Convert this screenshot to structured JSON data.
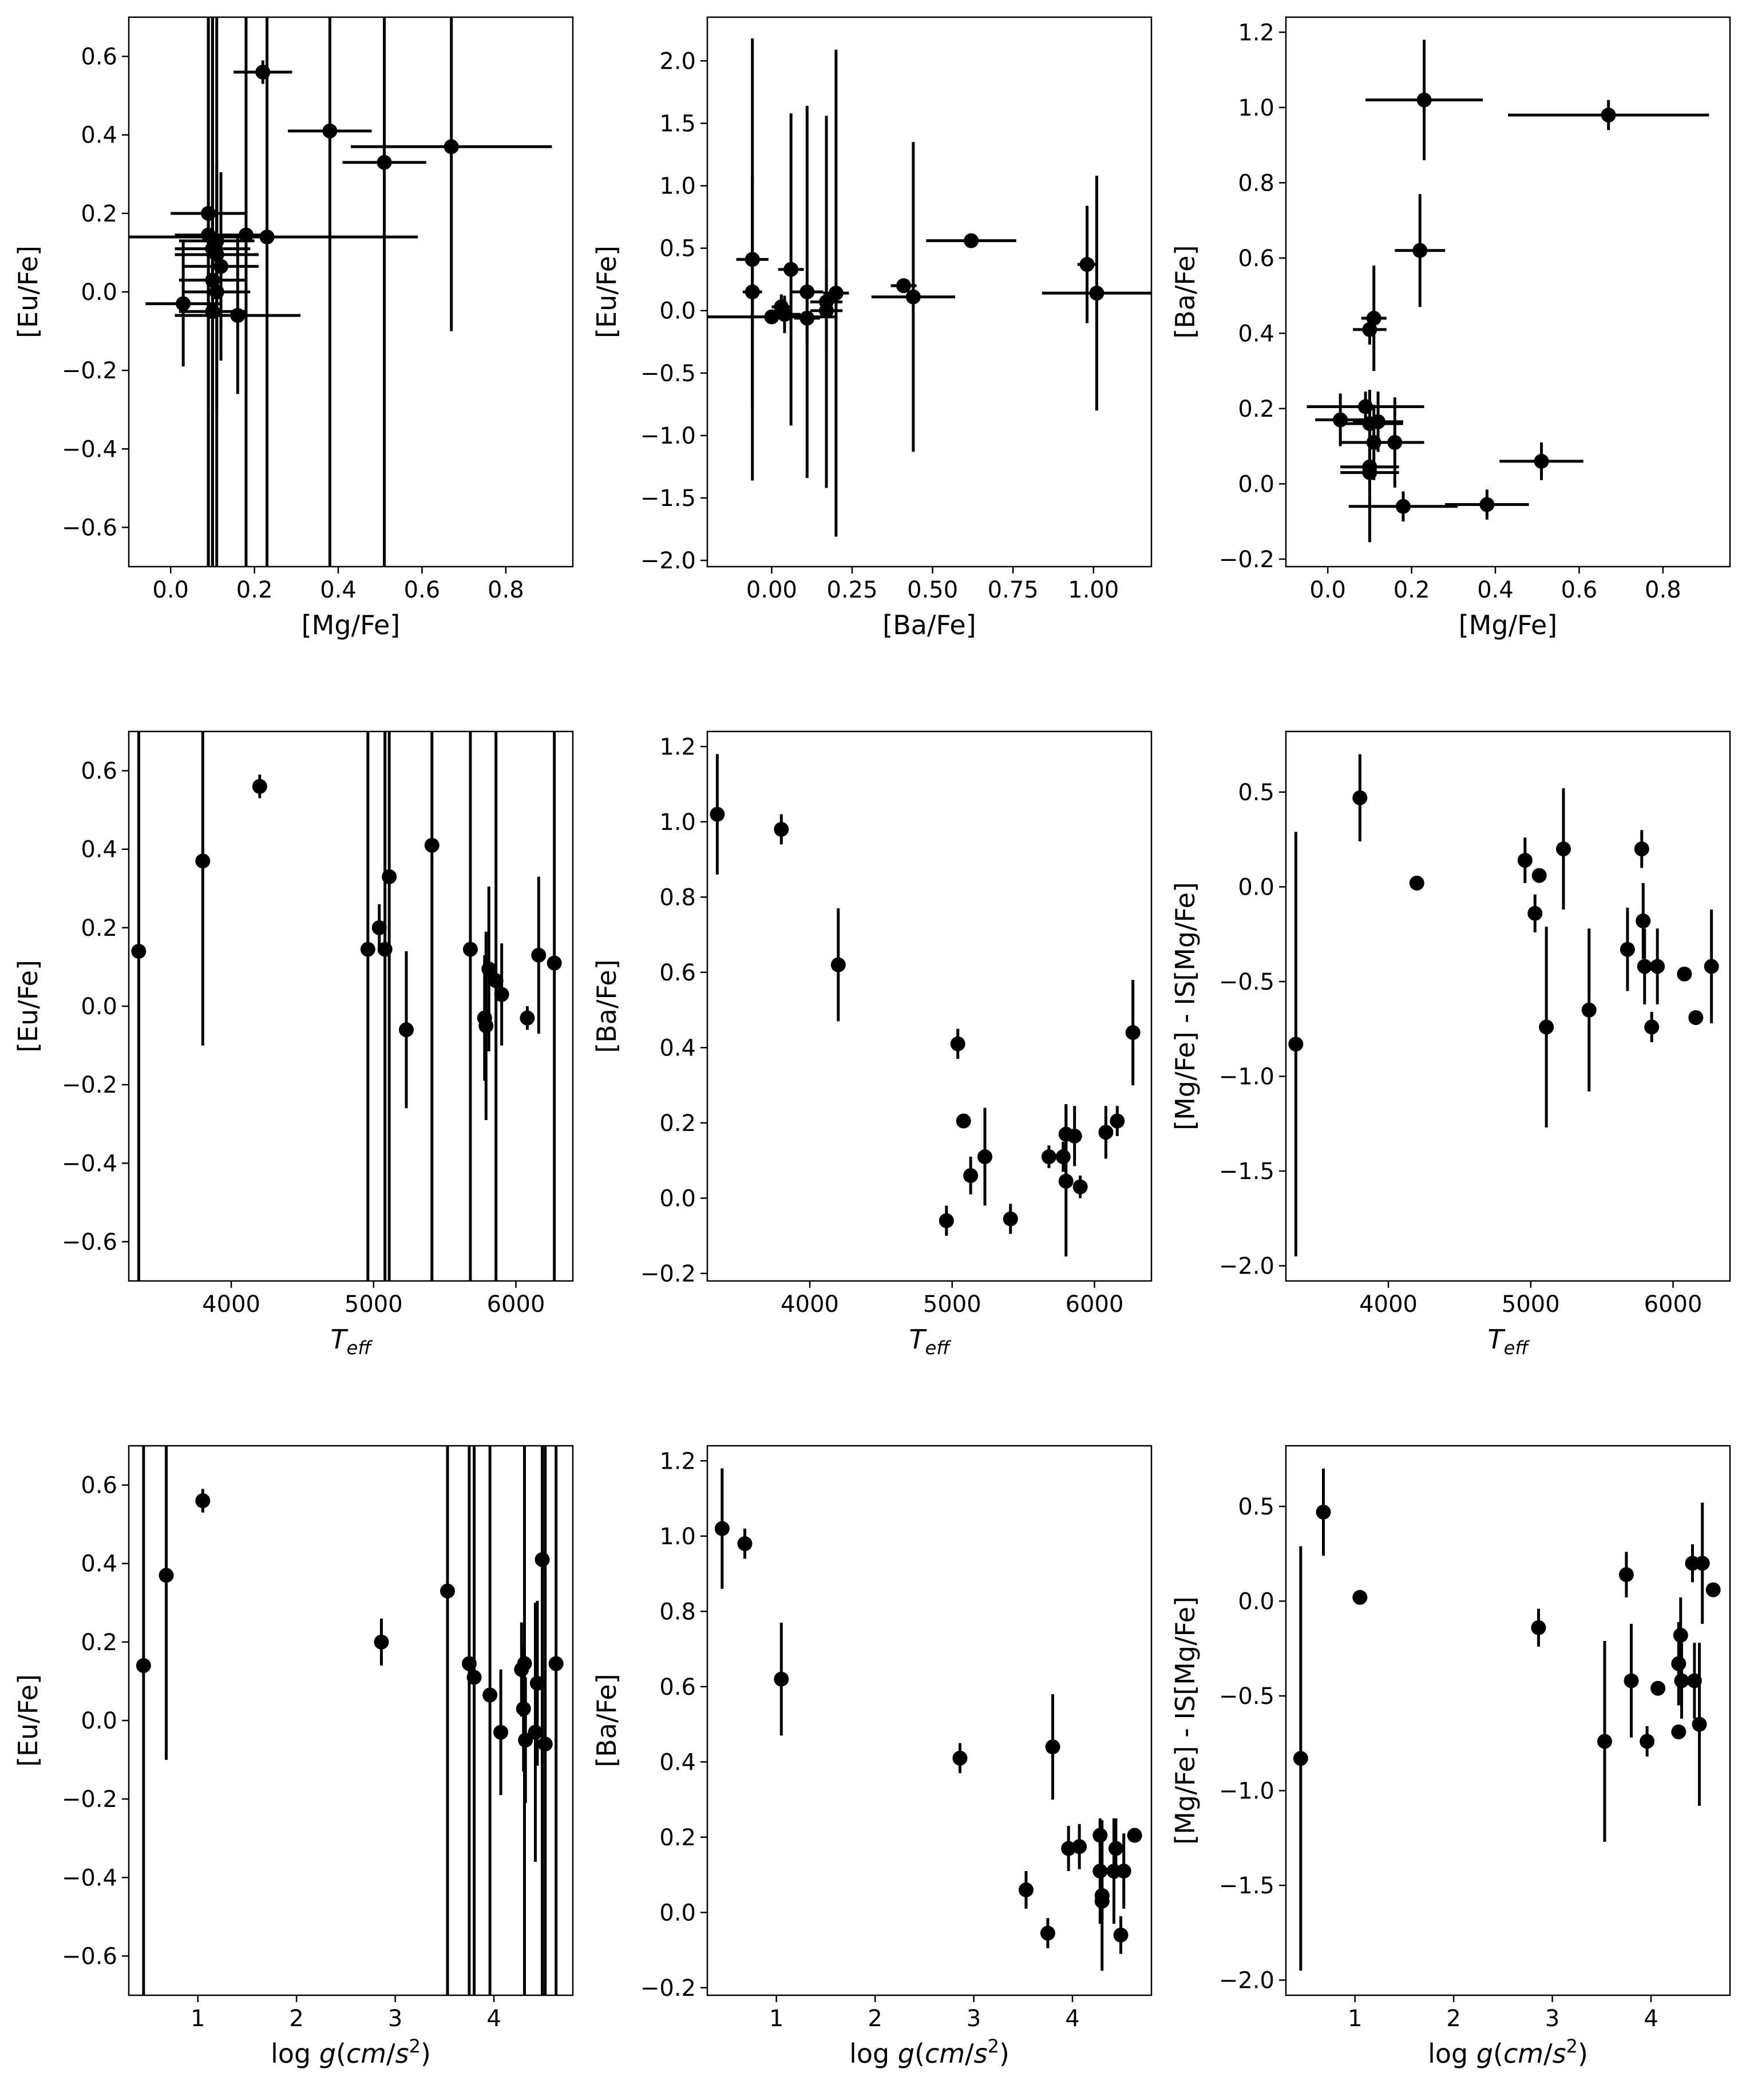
{
  "figure": {
    "background": "#ffffff",
    "marker_color": "#000000"
  },
  "chart_data": [
    {
      "type": "scatter",
      "error_bars": true,
      "xlabel": "[Mg/Fe]",
      "ylabel": "[Eu/Fe]",
      "xlim": [
        -0.1,
        0.96
      ],
      "ylim": [
        -0.7,
        0.7
      ],
      "xticks": [
        "0.0",
        "0.2",
        "0.4",
        "0.6",
        "0.8"
      ],
      "yticks": [
        "−0.6",
        "−0.4",
        "−0.2",
        "0.0",
        "0.2",
        "0.4",
        "0.6"
      ],
      "points": [
        {
          "x": 0.22,
          "y": 0.56,
          "xerr": 0.07,
          "yerr": 0.03
        },
        {
          "x": 0.38,
          "y": 0.41,
          "xerr": 0.1,
          "yerr": 1.2
        },
        {
          "x": 0.51,
          "y": 0.33,
          "xerr": 0.1,
          "yerr": 1.1
        },
        {
          "x": 0.67,
          "y": 0.37,
          "xerr": 0.24,
          "yerr": 0.47
        },
        {
          "x": 0.09,
          "y": 0.2,
          "xerr": 0.09,
          "yerr": 1.2
        },
        {
          "x": 0.09,
          "y": 0.145,
          "xerr": 0.08,
          "yerr": 1.2
        },
        {
          "x": 0.11,
          "y": 0.13,
          "xerr": 0.09,
          "yerr": 0.2
        },
        {
          "x": 0.1,
          "y": 0.11,
          "xerr": 0.09,
          "yerr": 1.2
        },
        {
          "x": 0.18,
          "y": 0.145,
          "xerr": 0.05,
          "yerr": 1.2
        },
        {
          "x": 0.23,
          "y": 0.14,
          "xerr": 0.36,
          "yerr": 1.2
        },
        {
          "x": 0.12,
          "y": 0.065,
          "xerr": 0.09,
          "yerr": 0.24
        },
        {
          "x": 0.11,
          "y": 0.095,
          "xerr": 0.1,
          "yerr": 1.2
        },
        {
          "x": 0.1,
          "y": 0.03,
          "xerr": 0.08,
          "yerr": 1.2
        },
        {
          "x": 0.03,
          "y": -0.03,
          "xerr": 0.09,
          "yerr": 0.16
        },
        {
          "x": 0.1,
          "y": -0.05,
          "xerr": 0.08,
          "yerr": 1.2
        },
        {
          "x": 0.16,
          "y": -0.06,
          "xerr": 0.15,
          "yerr": 0.2
        },
        {
          "x": 0.11,
          "y": 0.0,
          "xerr": 0.08,
          "yerr": 0.3
        }
      ]
    },
    {
      "type": "scatter",
      "error_bars": true,
      "xlabel": "[Ba/Fe]",
      "ylabel": "[Eu/Fe]",
      "xlim": [
        -0.2,
        1.18
      ],
      "ylim": [
        -2.05,
        2.35
      ],
      "xticks": [
        "0.00",
        "0.25",
        "0.50",
        "0.75",
        "1.00"
      ],
      "yticks": [
        "−2.0",
        "−1.5",
        "−1.0",
        "−0.5",
        "0.0",
        "0.5",
        "1.0",
        "1.5",
        "2.0"
      ],
      "points": [
        {
          "x": -0.06,
          "y": 0.41,
          "xerr": 0.05,
          "yerr": 1.77
        },
        {
          "x": -0.06,
          "y": 0.15,
          "xerr": 0.03,
          "yerr": 0.93
        },
        {
          "x": 0.03,
          "y": 0.03,
          "xerr": 0.03,
          "yerr": 0.1
        },
        {
          "x": 0.04,
          "y": -0.03,
          "xerr": 0.05,
          "yerr": 0.15
        },
        {
          "x": 0.06,
          "y": 0.33,
          "xerr": 0.04,
          "yerr": 1.25
        },
        {
          "x": 0.11,
          "y": 0.15,
          "xerr": 0.05,
          "yerr": 1.49
        },
        {
          "x": 0.11,
          "y": -0.06,
          "xerr": 0.04,
          "yerr": 0.2
        },
        {
          "x": 0.17,
          "y": 0.07,
          "xerr": 0.05,
          "yerr": 1.49
        },
        {
          "x": 0.17,
          "y": 0.0,
          "xerr": 0.05,
          "yerr": 0.35
        },
        {
          "x": 0.2,
          "y": 0.14,
          "xerr": 0.04,
          "yerr": 1.95
        },
        {
          "x": 0.0,
          "y": -0.05,
          "xerr": 0.2,
          "yerr": 0.0
        },
        {
          "x": 0.41,
          "y": 0.2,
          "xerr": 0.04,
          "yerr": 0.03
        },
        {
          "x": 0.44,
          "y": 0.11,
          "xerr": 0.13,
          "yerr": 1.24
        },
        {
          "x": 0.62,
          "y": 0.56,
          "xerr": 0.14,
          "yerr": 0.03
        },
        {
          "x": 0.98,
          "y": 0.37,
          "xerr": 0.03,
          "yerr": 0.47
        },
        {
          "x": 1.01,
          "y": 0.14,
          "xerr": 0.17,
          "yerr": 0.94
        }
      ]
    },
    {
      "type": "scatter",
      "error_bars": true,
      "xlabel": "[Mg/Fe]",
      "ylabel": "[Ba/Fe]",
      "xlim": [
        -0.1,
        0.96
      ],
      "ylim": [
        -0.22,
        1.24
      ],
      "xticks": [
        "0.0",
        "0.2",
        "0.4",
        "0.6",
        "0.8"
      ],
      "yticks": [
        "−0.2",
        "0.0",
        "0.2",
        "0.4",
        "0.6",
        "0.8",
        "1.0",
        "1.2"
      ],
      "points": [
        {
          "x": 0.23,
          "y": 1.02,
          "xerr": 0.14,
          "yerr": 0.16
        },
        {
          "x": 0.67,
          "y": 0.98,
          "xerr": 0.24,
          "yerr": 0.04
        },
        {
          "x": 0.22,
          "y": 0.62,
          "xerr": 0.06,
          "yerr": 0.15
        },
        {
          "x": 0.11,
          "y": 0.44,
          "xerr": 0.03,
          "yerr": 0.14
        },
        {
          "x": 0.1,
          "y": 0.41,
          "xerr": 0.04,
          "yerr": 0.04
        },
        {
          "x": 0.09,
          "y": 0.205,
          "xerr": 0.14,
          "yerr": 0.04
        },
        {
          "x": 0.1,
          "y": 0.16,
          "xerr": 0.08,
          "yerr": 0.09
        },
        {
          "x": 0.03,
          "y": 0.17,
          "xerr": 0.06,
          "yerr": 0.07
        },
        {
          "x": 0.12,
          "y": 0.165,
          "xerr": 0.06,
          "yerr": 0.08
        },
        {
          "x": 0.11,
          "y": 0.11,
          "xerr": 0.08,
          "yerr": 0.1
        },
        {
          "x": 0.16,
          "y": 0.11,
          "xerr": 0.07,
          "yerr": 0.12
        },
        {
          "x": 0.1,
          "y": 0.045,
          "xerr": 0.07,
          "yerr": 0.2
        },
        {
          "x": 0.1,
          "y": 0.03,
          "xerr": 0.07,
          "yerr": 0.05
        },
        {
          "x": 0.51,
          "y": 0.06,
          "xerr": 0.1,
          "yerr": 0.05
        },
        {
          "x": 0.18,
          "y": -0.06,
          "xerr": 0.13,
          "yerr": 0.04
        },
        {
          "x": 0.38,
          "y": -0.055,
          "xerr": 0.1,
          "yerr": 0.04
        }
      ]
    },
    {
      "type": "scatter",
      "error_bars": true,
      "xlabel": "T_eff",
      "ylabel": "[Eu/Fe]",
      "xlim": [
        3280,
        6400
      ],
      "ylim": [
        -0.7,
        0.7
      ],
      "xticks": [
        "4000",
        "5000",
        "6000"
      ],
      "yticks": [
        "−0.6",
        "−0.4",
        "−0.2",
        "0.0",
        "0.2",
        "0.4",
        "0.6"
      ],
      "points": [
        {
          "x": 3350,
          "y": 0.14,
          "yerr": 1.2
        },
        {
          "x": 3800,
          "y": 0.37,
          "yerr": 0.47
        },
        {
          "x": 4200,
          "y": 0.56,
          "yerr": 0.03
        },
        {
          "x": 4960,
          "y": 0.145,
          "yerr": 1.2
        },
        {
          "x": 5040,
          "y": 0.2,
          "yerr": 0.06
        },
        {
          "x": 5080,
          "y": 0.145,
          "yerr": 1.2
        },
        {
          "x": 5110,
          "y": 0.33,
          "yerr": 1.2
        },
        {
          "x": 5230,
          "y": -0.06,
          "yerr": 0.2
        },
        {
          "x": 5410,
          "y": 0.41,
          "yerr": 1.2
        },
        {
          "x": 5680,
          "y": 0.145,
          "yerr": 1.2
        },
        {
          "x": 5780,
          "y": -0.03,
          "yerr": 0.16
        },
        {
          "x": 5790,
          "y": -0.05,
          "yerr": 0.24
        },
        {
          "x": 5810,
          "y": 0.095,
          "yerr": 0.21
        },
        {
          "x": 5860,
          "y": 0.065,
          "yerr": 1.2
        },
        {
          "x": 5900,
          "y": 0.03,
          "yerr": 0.13
        },
        {
          "x": 6080,
          "y": -0.03,
          "yerr": 0.03
        },
        {
          "x": 6160,
          "y": 0.13,
          "yerr": 0.2
        },
        {
          "x": 6270,
          "y": 0.11,
          "yerr": 1.2
        }
      ]
    },
    {
      "type": "scatter",
      "error_bars": true,
      "xlabel": "T_eff",
      "ylabel": "[Ba/Fe]",
      "xlim": [
        3280,
        6400
      ],
      "ylim": [
        -0.22,
        1.24
      ],
      "xticks": [
        "4000",
        "5000",
        "6000"
      ],
      "yticks": [
        "−0.2",
        "0.0",
        "0.2",
        "0.4",
        "0.6",
        "0.8",
        "1.0",
        "1.2"
      ],
      "points": [
        {
          "x": 3350,
          "y": 1.02,
          "yerr": 0.16
        },
        {
          "x": 3800,
          "y": 0.98,
          "yerr": 0.04
        },
        {
          "x": 4200,
          "y": 0.62,
          "yerr": 0.15
        },
        {
          "x": 4960,
          "y": -0.06,
          "yerr": 0.04
        },
        {
          "x": 5040,
          "y": 0.41,
          "yerr": 0.04
        },
        {
          "x": 5080,
          "y": 0.205,
          "yerr": 0.0
        },
        {
          "x": 5130,
          "y": 0.06,
          "yerr": 0.05
        },
        {
          "x": 5230,
          "y": 0.11,
          "yerr": 0.13
        },
        {
          "x": 5410,
          "y": -0.055,
          "yerr": 0.04
        },
        {
          "x": 5680,
          "y": 0.11,
          "yerr": 0.03
        },
        {
          "x": 5780,
          "y": 0.11,
          "yerr": 0.04
        },
        {
          "x": 5800,
          "y": 0.17,
          "yerr": 0.08
        },
        {
          "x": 5800,
          "y": 0.045,
          "yerr": 0.2
        },
        {
          "x": 5860,
          "y": 0.165,
          "yerr": 0.08
        },
        {
          "x": 5900,
          "y": 0.03,
          "yerr": 0.03
        },
        {
          "x": 6080,
          "y": 0.175,
          "yerr": 0.07
        },
        {
          "x": 6160,
          "y": 0.205,
          "yerr": 0.04
        },
        {
          "x": 6270,
          "y": 0.44,
          "yerr": 0.14
        }
      ]
    },
    {
      "type": "scatter",
      "error_bars": true,
      "xlabel": "T_eff",
      "ylabel": "[Mg/Fe] - IS[Mg/Fe]",
      "xlim": [
        3280,
        6400
      ],
      "ylim": [
        -2.08,
        0.82
      ],
      "xticks": [
        "4000",
        "5000",
        "6000"
      ],
      "yticks": [
        "−2.0",
        "−1.5",
        "−1.0",
        "−0.5",
        "0.0",
        "0.5"
      ],
      "points": [
        {
          "x": 3350,
          "y": -0.83,
          "yerr": 1.12
        },
        {
          "x": 3800,
          "y": 0.47,
          "yerr": 0.23
        },
        {
          "x": 4200,
          "y": 0.02,
          "yerr": 0.0
        },
        {
          "x": 4960,
          "y": 0.14,
          "yerr": 0.12
        },
        {
          "x": 5030,
          "y": -0.14,
          "yerr": 0.1
        },
        {
          "x": 5060,
          "y": 0.06,
          "yerr": 0.0
        },
        {
          "x": 5110,
          "y": -0.74,
          "yerr": 0.53
        },
        {
          "x": 5230,
          "y": 0.2,
          "yerr": 0.32
        },
        {
          "x": 5410,
          "y": -0.65,
          "yerr": 0.43
        },
        {
          "x": 5680,
          "y": -0.33,
          "yerr": 0.22
        },
        {
          "x": 5780,
          "y": 0.2,
          "yerr": 0.1
        },
        {
          "x": 5790,
          "y": -0.18,
          "yerr": 0.2
        },
        {
          "x": 5800,
          "y": -0.42,
          "yerr": 0.2
        },
        {
          "x": 5850,
          "y": -0.74,
          "yerr": 0.08
        },
        {
          "x": 5890,
          "y": -0.42,
          "yerr": 0.2
        },
        {
          "x": 6080,
          "y": -0.46,
          "yerr": 0.03
        },
        {
          "x": 6160,
          "y": -0.69,
          "yerr": 0.0
        },
        {
          "x": 6270,
          "y": -0.42,
          "yerr": 0.3
        }
      ]
    },
    {
      "type": "scatter",
      "error_bars": true,
      "xlabel": "log g(cm/s^2)",
      "ylabel": "[Eu/Fe]",
      "xlim": [
        0.3,
        4.8
      ],
      "ylim": [
        -0.7,
        0.7
      ],
      "xticks": [
        "1",
        "2",
        "3",
        "4"
      ],
      "yticks": [
        "−0.6",
        "−0.4",
        "−0.2",
        "0.0",
        "0.2",
        "0.4",
        "0.6"
      ],
      "points": [
        {
          "x": 0.45,
          "y": 0.14,
          "yerr": 1.2
        },
        {
          "x": 0.68,
          "y": 0.37,
          "yerr": 0.47
        },
        {
          "x": 1.05,
          "y": 0.56,
          "yerr": 0.03
        },
        {
          "x": 2.86,
          "y": 0.2,
          "yerr": 0.06
        },
        {
          "x": 3.53,
          "y": 0.33,
          "yerr": 1.2
        },
        {
          "x": 3.75,
          "y": 0.145,
          "yerr": 1.2
        },
        {
          "x": 3.8,
          "y": 0.11,
          "yerr": 1.2
        },
        {
          "x": 3.96,
          "y": 0.065,
          "yerr": 1.2
        },
        {
          "x": 4.07,
          "y": -0.03,
          "yerr": 0.16
        },
        {
          "x": 4.28,
          "y": 0.13,
          "yerr": 0.12
        },
        {
          "x": 4.3,
          "y": 0.03,
          "yerr": 0.16
        },
        {
          "x": 4.32,
          "y": -0.05,
          "yerr": 0.16
        },
        {
          "x": 4.31,
          "y": 0.145,
          "yerr": 1.2
        },
        {
          "x": 4.42,
          "y": -0.03,
          "yerr": 0.33
        },
        {
          "x": 4.44,
          "y": 0.095,
          "yerr": 0.21
        },
        {
          "x": 4.49,
          "y": 0.41,
          "yerr": 1.2
        },
        {
          "x": 4.52,
          "y": -0.06,
          "yerr": 1.2
        },
        {
          "x": 4.63,
          "y": 0.145,
          "yerr": 1.2
        }
      ]
    },
    {
      "type": "scatter",
      "error_bars": true,
      "xlabel": "log g(cm/s^2)",
      "ylabel": "[Ba/Fe]",
      "xlim": [
        0.3,
        4.8
      ],
      "ylim": [
        -0.22,
        1.24
      ],
      "xticks": [
        "1",
        "2",
        "3",
        "4"
      ],
      "yticks": [
        "−0.2",
        "0.0",
        "0.2",
        "0.4",
        "0.6",
        "0.8",
        "1.0",
        "1.2"
      ],
      "points": [
        {
          "x": 0.45,
          "y": 1.02,
          "yerr": 0.16
        },
        {
          "x": 0.68,
          "y": 0.98,
          "yerr": 0.04
        },
        {
          "x": 1.05,
          "y": 0.62,
          "yerr": 0.15
        },
        {
          "x": 2.86,
          "y": 0.41,
          "yerr": 0.04
        },
        {
          "x": 3.53,
          "y": 0.06,
          "yerr": 0.05
        },
        {
          "x": 3.75,
          "y": -0.055,
          "yerr": 0.04
        },
        {
          "x": 3.8,
          "y": 0.44,
          "yerr": 0.14
        },
        {
          "x": 3.96,
          "y": 0.17,
          "yerr": 0.06
        },
        {
          "x": 4.07,
          "y": 0.175,
          "yerr": 0.06
        },
        {
          "x": 4.28,
          "y": 0.205,
          "yerr": 0.04
        },
        {
          "x": 4.28,
          "y": 0.11,
          "yerr": 0.14
        },
        {
          "x": 4.3,
          "y": 0.045,
          "yerr": 0.2
        },
        {
          "x": 4.3,
          "y": 0.03,
          "yerr": 0.05
        },
        {
          "x": 4.42,
          "y": 0.11,
          "yerr": 0.14
        },
        {
          "x": 4.44,
          "y": 0.17,
          "yerr": 0.08
        },
        {
          "x": 4.49,
          "y": -0.06,
          "yerr": 0.05
        },
        {
          "x": 4.52,
          "y": 0.11,
          "yerr": 0.1
        },
        {
          "x": 4.63,
          "y": 0.205,
          "yerr": 0.0
        }
      ]
    },
    {
      "type": "scatter",
      "error_bars": true,
      "xlabel": "log g(cm/s^2)",
      "ylabel": "[Mg/Fe] - IS[Mg/Fe]",
      "xlim": [
        0.3,
        4.8
      ],
      "ylim": [
        -2.08,
        0.82
      ],
      "xticks": [
        "1",
        "2",
        "3",
        "4"
      ],
      "yticks": [
        "−2.0",
        "−1.5",
        "−1.0",
        "−0.5",
        "0.0",
        "0.5"
      ],
      "points": [
        {
          "x": 0.45,
          "y": -0.83,
          "yerr": 1.12
        },
        {
          "x": 0.68,
          "y": 0.47,
          "yerr": 0.23
        },
        {
          "x": 1.05,
          "y": 0.02,
          "yerr": 0.0
        },
        {
          "x": 2.86,
          "y": -0.14,
          "yerr": 0.1
        },
        {
          "x": 3.53,
          "y": -0.74,
          "yerr": 0.53
        },
        {
          "x": 3.75,
          "y": 0.14,
          "yerr": 0.12
        },
        {
          "x": 3.8,
          "y": -0.42,
          "yerr": 0.3
        },
        {
          "x": 3.96,
          "y": -0.74,
          "yerr": 0.08
        },
        {
          "x": 4.07,
          "y": -0.46,
          "yerr": 0.03
        },
        {
          "x": 4.28,
          "y": -0.69,
          "yerr": 0.0
        },
        {
          "x": 4.28,
          "y": -0.33,
          "yerr": 0.22
        },
        {
          "x": 4.3,
          "y": -0.18,
          "yerr": 0.2
        },
        {
          "x": 4.31,
          "y": -0.42,
          "yerr": 0.2
        },
        {
          "x": 4.42,
          "y": 0.2,
          "yerr": 0.1
        },
        {
          "x": 4.44,
          "y": -0.42,
          "yerr": 0.2
        },
        {
          "x": 4.49,
          "y": -0.65,
          "yerr": 0.43
        },
        {
          "x": 4.52,
          "y": 0.2,
          "yerr": 0.32
        },
        {
          "x": 4.63,
          "y": 0.06,
          "yerr": 0.0
        }
      ]
    }
  ]
}
